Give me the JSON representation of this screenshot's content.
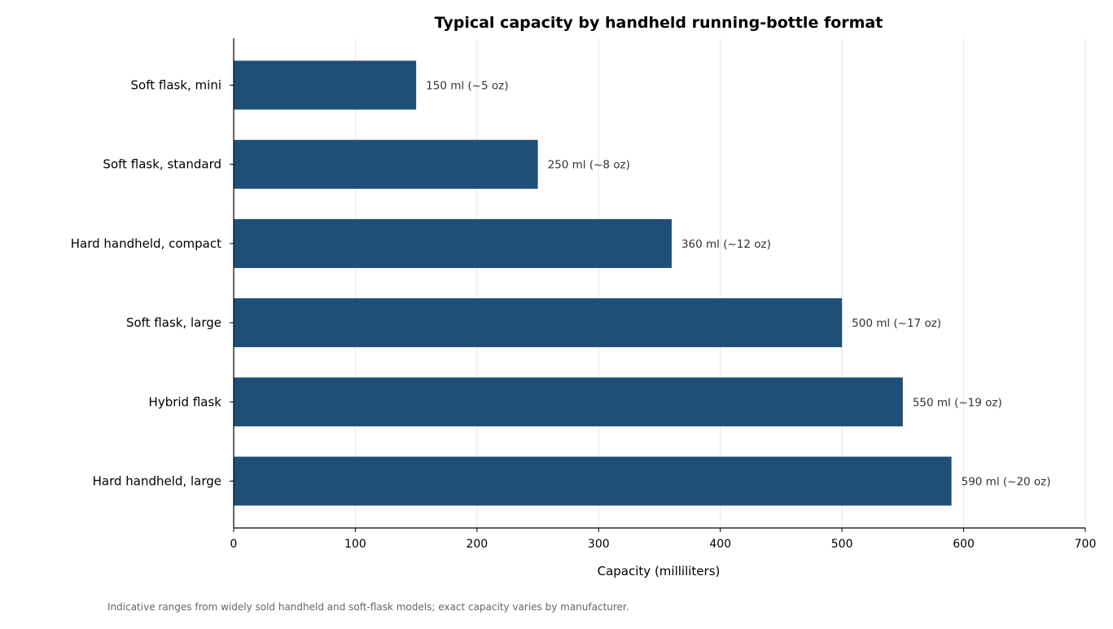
{
  "chart_data": {
    "type": "bar",
    "orientation": "horizontal",
    "title": "Typical capacity by handheld running-bottle format",
    "xlabel": "Capacity (milliliters)",
    "ylabel": "",
    "xlim": [
      0,
      700
    ],
    "xticks": [
      0,
      100,
      200,
      300,
      400,
      500,
      600,
      700
    ],
    "grid": "vertical",
    "categories": [
      "Soft flask, mini",
      "Soft flask, standard",
      "Hard handheld, compact",
      "Soft flask, large",
      "Hybrid flask",
      "Hard handheld, large"
    ],
    "values": [
      150,
      250,
      360,
      500,
      550,
      590
    ],
    "data_labels": [
      "150 ml  (~5 oz)",
      "250 ml  (~8 oz)",
      "360 ml  (~12 oz)",
      "500 ml  (~17 oz)",
      "550 ml  (~19 oz)",
      "590 ml  (~20 oz)"
    ],
    "bar_color": "#1f4e77",
    "footnote": "Indicative ranges from widely sold handheld and soft-flask models; exact capacity varies by manufacturer."
  }
}
